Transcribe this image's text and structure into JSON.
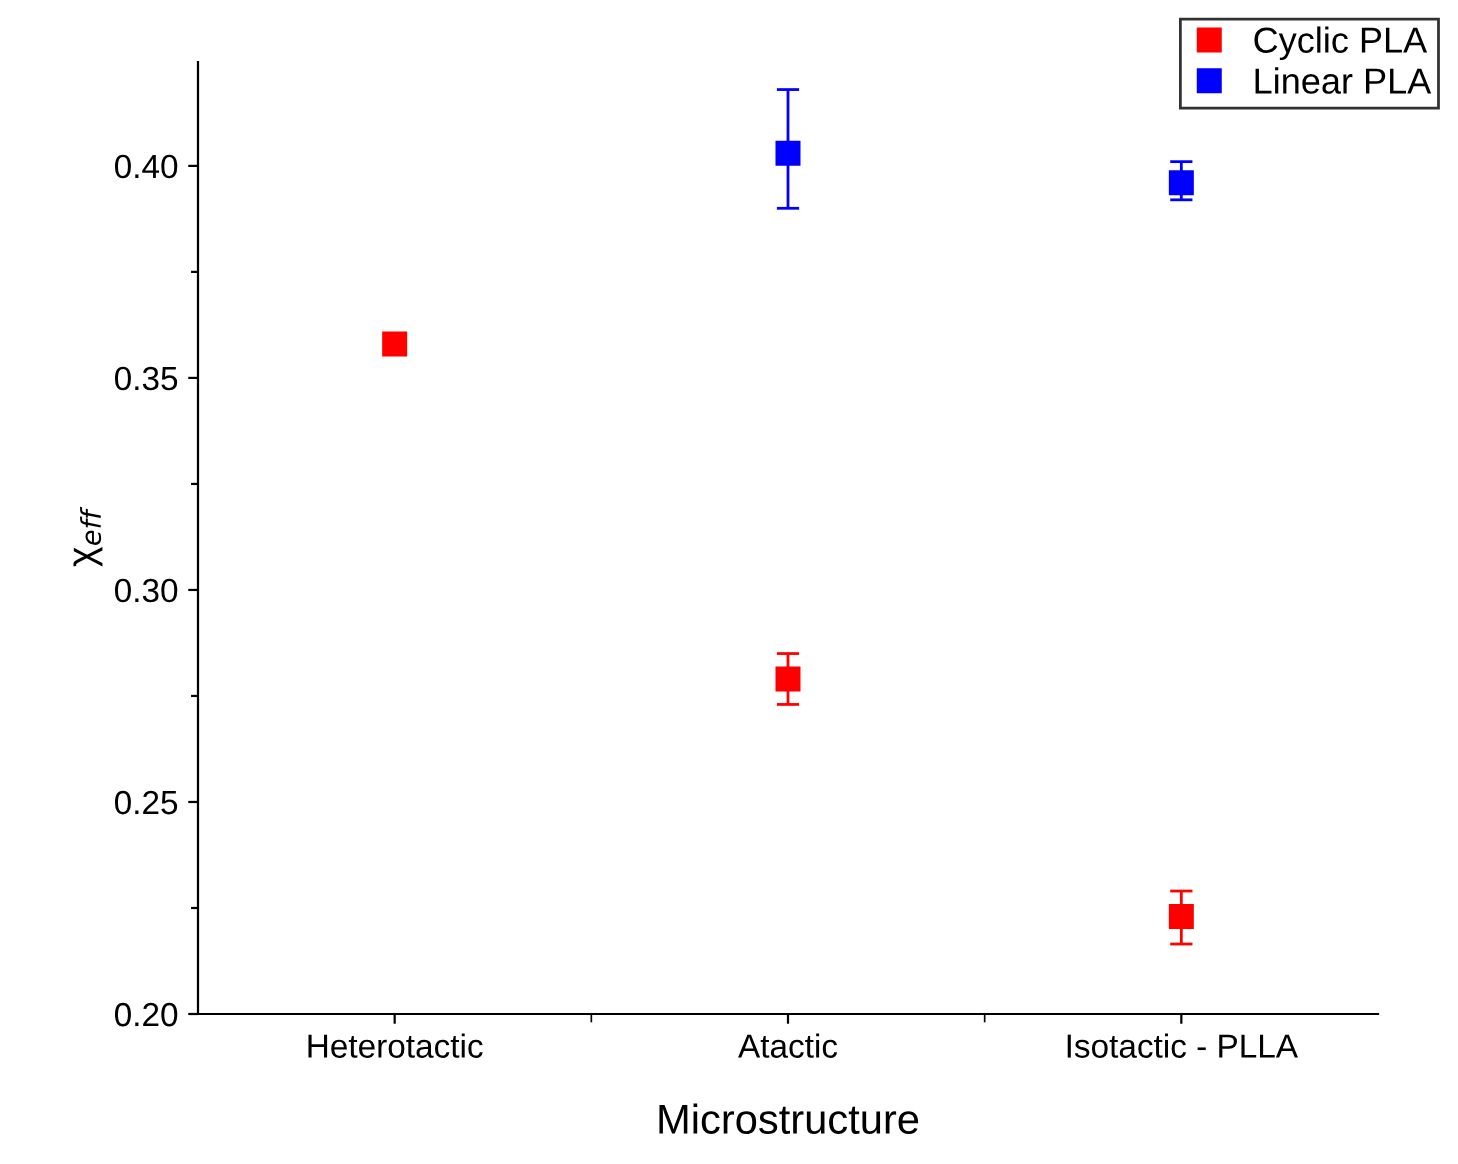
{
  "chart_data": {
    "type": "scatter",
    "xlabel": "Microstructure",
    "ylabel": "χ$_{eff}$",
    "categories": [
      "Heterotactic",
      "Atactic",
      "Isotactic - PLLA"
    ],
    "series": [
      {
        "name": "Cyclic PLA",
        "color": "#ff0000",
        "values": [
          0.358,
          0.279,
          0.223
        ],
        "errors": [
          null,
          [
            0.273,
            0.285
          ],
          [
            0.2165,
            0.229
          ]
        ]
      },
      {
        "name": "Linear PLA",
        "color": "#0000ff",
        "values": [
          null,
          0.403,
          0.396
        ],
        "errors": [
          null,
          [
            0.39,
            0.418
          ],
          [
            0.392,
            0.401
          ]
        ]
      }
    ],
    "ylim": [
      0.2,
      0.4245
    ],
    "yticks": [
      {
        "value": 0.2,
        "label": "0.20"
      },
      {
        "value": 0.225,
        "label": null
      },
      {
        "value": 0.25,
        "label": "0.25"
      },
      {
        "value": 0.275,
        "label": null
      },
      {
        "value": 0.3,
        "label": "0.30"
      },
      {
        "value": 0.325,
        "label": null
      },
      {
        "value": 0.35,
        "label": "0.35"
      },
      {
        "value": 0.375,
        "label": null
      },
      {
        "value": 0.4,
        "label": "0.40"
      }
    ],
    "marker": "square",
    "legend": "top right",
    "grid": false
  }
}
